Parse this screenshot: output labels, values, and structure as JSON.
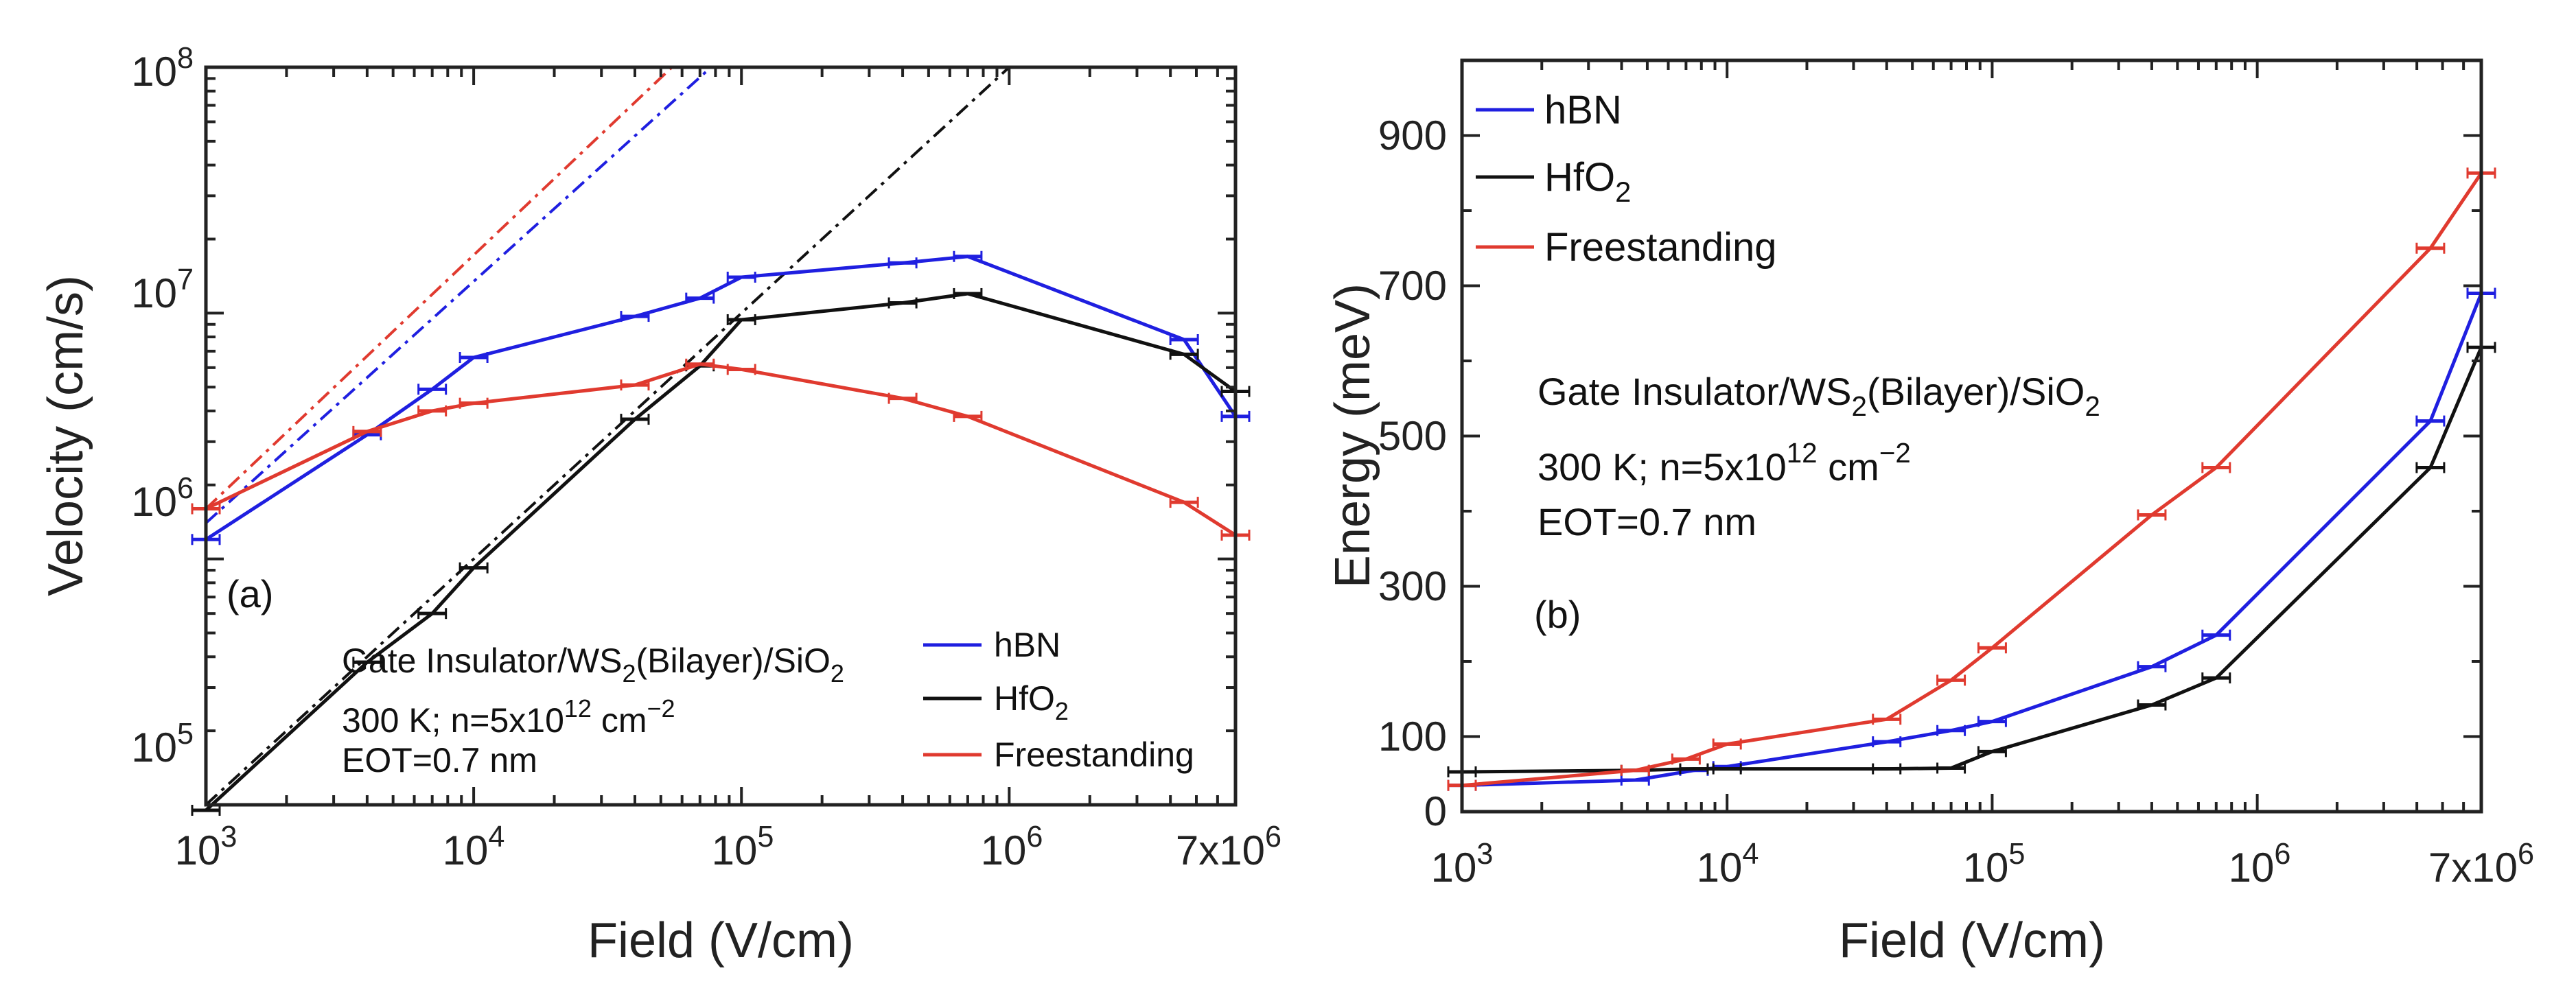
{
  "chart_data": [
    {
      "type": "line",
      "panel_label": "(a)",
      "xlabel": "Field (V/cm)",
      "ylabel": "Velocity (cm/s)",
      "xscale": "log",
      "yscale": "log",
      "xlim": [
        1000,
        7000000
      ],
      "ylim": [
        100000,
        100000000
      ],
      "x_ticks": [
        {
          "value": 1000,
          "base": "10",
          "exp": "3"
        },
        {
          "value": 10000,
          "base": "10",
          "exp": "4"
        },
        {
          "value": 100000,
          "base": "10",
          "exp": "5"
        },
        {
          "value": 1000000,
          "base": "10",
          "exp": "6"
        },
        {
          "value": 7000000,
          "base": "7x10",
          "exp": "6"
        }
      ],
      "y_ticks": [
        {
          "value": 100000,
          "base": "10",
          "exp": "5"
        },
        {
          "value": 1000000,
          "base": "10",
          "exp": "6"
        },
        {
          "value": 10000000,
          "base": "10",
          "exp": "7"
        },
        {
          "value": 100000000,
          "base": "10",
          "exp": "8"
        }
      ],
      "annotation": {
        "line1": {
          "pre": "Gate Insulator/WS",
          "sub": "2",
          "post": "(Bilayer)/SiO",
          "sub2": "2"
        },
        "line2": {
          "pre": "300 K; n=5x10",
          "sup": "12",
          "mid": " cm",
          "sup2": "−2"
        },
        "line3": "EOT=0.7 nm"
      },
      "legend_position": "bottom-right",
      "series": [
        {
          "name": "hBN",
          "color": "#1f1fe0",
          "x": [
            1000,
            4000,
            7000,
            10000,
            40000,
            70000,
            100000,
            400000,
            700000,
            4500000,
            7000000
          ],
          "y": [
            1200000,
            3200000,
            4900000,
            6600000,
            9700000,
            11500000,
            14000000,
            16000000,
            17000000,
            7800000,
            3800000
          ]
        },
        {
          "name": "HfO",
          "name_sub": "2",
          "color": "#111111",
          "x": [
            1000,
            4000,
            7000,
            10000,
            40000,
            70000,
            100000,
            400000,
            700000,
            4500000,
            7000000
          ],
          "y": [
            95000,
            380000,
            600000,
            920000,
            3700000,
            6100000,
            9400000,
            11000000,
            12000000,
            6800000,
            4800000
          ]
        },
        {
          "name": "Freestanding",
          "color": "#e03a2f",
          "x": [
            1000,
            4000,
            7000,
            10000,
            40000,
            70000,
            100000,
            400000,
            700000,
            4500000,
            7000000
          ],
          "y": [
            1600000,
            3300000,
            4000000,
            4300000,
            5100000,
            6200000,
            5900000,
            4500000,
            3800000,
            1700000,
            1250000
          ]
        }
      ],
      "reference_lines": [
        {
          "color": "#e03a2f",
          "x": [
            1000,
            55000
          ],
          "y": [
            1600000,
            100000000
          ]
        },
        {
          "color": "#1f1fe0",
          "x": [
            1000,
            77000
          ],
          "y": [
            1400000,
            100000000
          ]
        },
        {
          "color": "#111111",
          "x": [
            1000,
            1000000
          ],
          "y": [
            100000,
            100000000
          ]
        }
      ]
    },
    {
      "type": "line",
      "panel_label": "(b)",
      "xlabel": "Field (V/cm)",
      "ylabel": "Energy (meV)",
      "xscale": "log",
      "yscale": "linear",
      "xlim": [
        1000,
        7000000
      ],
      "ylim": [
        0,
        1000
      ],
      "x_ticks": [
        {
          "value": 1000,
          "base": "10",
          "exp": "3"
        },
        {
          "value": 10000,
          "base": "10",
          "exp": "4"
        },
        {
          "value": 100000,
          "base": "10",
          "exp": "5"
        },
        {
          "value": 1000000,
          "base": "10",
          "exp": "6"
        },
        {
          "value": 7000000,
          "base": "7x10",
          "exp": "6"
        }
      ],
      "y_ticks": [
        {
          "value": 0,
          "label": "0"
        },
        {
          "value": 100,
          "label": "100"
        },
        {
          "value": 300,
          "label": "300"
        },
        {
          "value": 500,
          "label": "500"
        },
        {
          "value": 700,
          "label": "700"
        },
        {
          "value": 900,
          "label": "900"
        }
      ],
      "annotation": {
        "line1": {
          "pre": "Gate Insulator/WS",
          "sub": "2",
          "post": "(Bilayer)/SiO",
          "sub2": "2"
        },
        "line2": {
          "pre": "300 K; n=5x10",
          "sup": "12",
          "mid": " cm",
          "sup2": "−2"
        },
        "line3": "EOT=0.7 nm"
      },
      "legend_position": "top-left",
      "series": [
        {
          "name": "hBN",
          "color": "#1f1fe0",
          "x": [
            1000,
            4500,
            7500,
            10000,
            40000,
            70000,
            100000,
            400000,
            700000,
            4500000,
            7000000
          ],
          "y": [
            35,
            42,
            55,
            60,
            93,
            108,
            120,
            193,
            235,
            520,
            690
          ]
        },
        {
          "name": "HfO",
          "name_sub": "2",
          "color": "#111111",
          "x": [
            1000,
            4500,
            7500,
            10000,
            40000,
            70000,
            100000,
            400000,
            700000,
            4500000,
            7000000
          ],
          "y": [
            53,
            55,
            57,
            57,
            57,
            58,
            80,
            142,
            178,
            458,
            618
          ]
        },
        {
          "name": "Freestanding",
          "color": "#e03a2f",
          "x": [
            1000,
            4500,
            7000,
            10000,
            40000,
            70000,
            100000,
            400000,
            700000,
            4500000,
            7000000
          ],
          "y": [
            35,
            55,
            70,
            90,
            123,
            175,
            218,
            395,
            458,
            750,
            850
          ]
        }
      ]
    }
  ]
}
